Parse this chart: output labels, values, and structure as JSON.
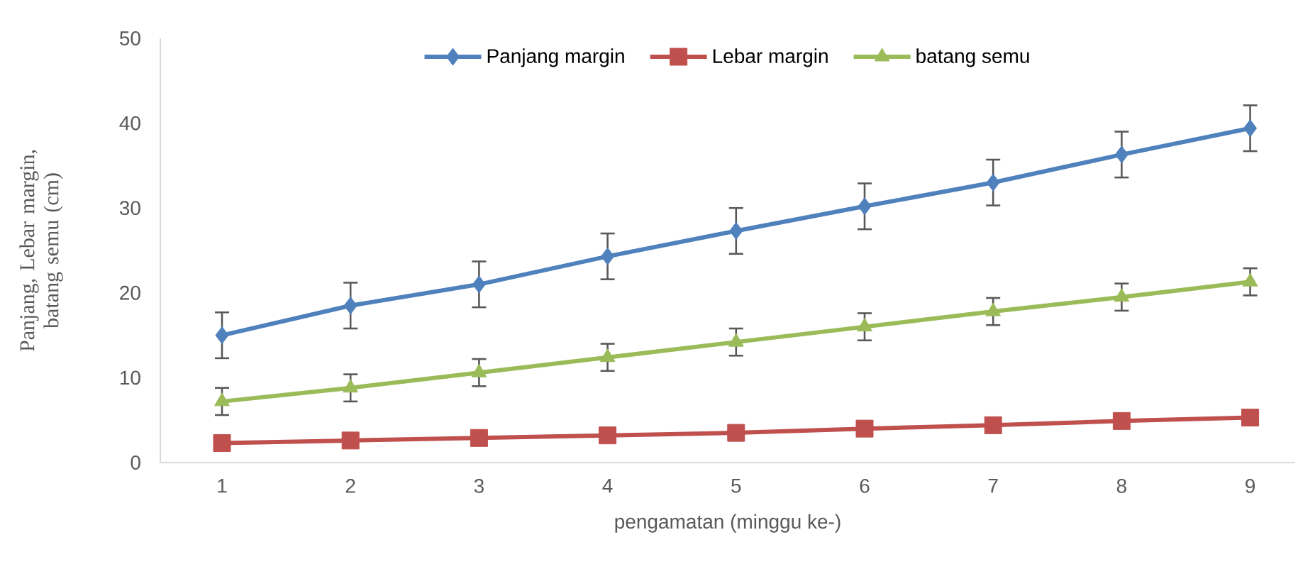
{
  "chart_data": {
    "type": "line",
    "xlabel": "pengamatan (minggu ke-)",
    "ylabel": "Panjang, Lebar margin, batang semu (cm)",
    "categories": [
      "1",
      "2",
      "3",
      "4",
      "5",
      "6",
      "7",
      "8",
      "9"
    ],
    "series": [
      {
        "name": "Panjang margin",
        "color": "#4f81bd",
        "marker": "diamond",
        "values": [
          15.0,
          18.5,
          21.0,
          24.3,
          27.3,
          30.2,
          33.0,
          36.3,
          39.4
        ],
        "errors": [
          2.7,
          2.7,
          2.7,
          2.7,
          2.7,
          2.7,
          2.7,
          2.7,
          2.7
        ]
      },
      {
        "name": "Lebar margin",
        "color": "#c0504d",
        "marker": "square",
        "values": [
          2.3,
          2.6,
          2.9,
          3.2,
          3.5,
          4.0,
          4.4,
          4.9,
          5.3
        ]
      },
      {
        "name": "batang semu",
        "color": "#9bbb59",
        "marker": "triangle",
        "values": [
          7.2,
          8.8,
          10.6,
          12.4,
          14.2,
          16.0,
          17.8,
          19.5,
          21.3
        ],
        "errors": [
          1.6,
          1.6,
          1.6,
          1.6,
          1.6,
          1.6,
          1.6,
          1.6,
          1.6
        ]
      }
    ],
    "ylim": [
      0,
      50
    ],
    "yticks": [
      0,
      10,
      20,
      30,
      40,
      50
    ],
    "grid": false,
    "legend": "top",
    "line_style": "solid"
  }
}
